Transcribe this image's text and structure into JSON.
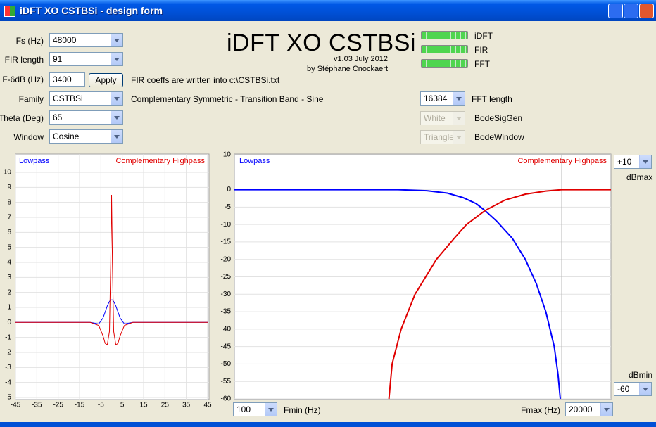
{
  "window": {
    "title": "iDFT XO CSTBSi - design form"
  },
  "form": {
    "fs_label": "Fs (Hz)",
    "fs_value": "48000",
    "fir_length_label": "FIR length",
    "fir_length_value": "91",
    "f6db_label": "F-6dB (Hz)",
    "f6db_value": "3400",
    "apply_button": "Apply",
    "coeffs_note": "FIR coeffs are written into c:\\CSTBSi.txt",
    "family_label": "Family",
    "family_value": "CSTBSi",
    "family_description": "Complementary Symmetric - Transition Band - Sine",
    "theta_label": "Theta (Deg)",
    "theta_value": "65",
    "window_label": "Window",
    "window_value": "Cosine"
  },
  "header": {
    "title": "iDFT XO CSTBSi",
    "version": "v1.03 July 2012",
    "author": "by Stéphane Cnockaert"
  },
  "indicators": [
    {
      "label": "iDFT"
    },
    {
      "label": "FIR"
    },
    {
      "label": "FFT"
    }
  ],
  "fft": {
    "fft_length_value": "16384",
    "fft_length_label": "FFT length",
    "bode_sig_gen_value": "White",
    "bode_sig_gen_label": "BodeSigGen",
    "bode_window_value": "Triangle",
    "bode_window_label": "BodeWindow"
  },
  "bode_controls": {
    "dbmax_value": "+10",
    "dbmax_label": "dBmax",
    "dbmin_label": "dBmin",
    "dbmin_value": "-60",
    "fmin_value": "100",
    "fmin_label": "Fmin (Hz)",
    "fmax_label": "Fmax (Hz)",
    "fmax_value": "20000"
  },
  "chart_data": [
    {
      "type": "line",
      "x": [
        -45,
        -10,
        -6,
        -4,
        -3,
        -2,
        -1,
        -0.4,
        0,
        0.4,
        1,
        2,
        3,
        4,
        6,
        10,
        45
      ],
      "series": [
        {
          "name": "Lowpass",
          "color": "#0000ff",
          "values": [
            0,
            0,
            -0.1,
            0.3,
            0.7,
            1.1,
            1.4,
            1.5,
            1.5,
            1.5,
            1.4,
            1.1,
            0.7,
            0.3,
            -0.1,
            0,
            0
          ]
        },
        {
          "name": "Complementary Highpass",
          "color": "#e00000",
          "values": [
            0,
            0,
            -0.2,
            -0.9,
            -1.4,
            -1.5,
            -0.6,
            4,
            8.5,
            4,
            -0.6,
            -1.5,
            -1.4,
            -0.9,
            -0.2,
            0,
            0
          ]
        }
      ],
      "xlim": [
        -45,
        45
      ],
      "ylim": [
        -5,
        10
      ],
      "xticks": [
        -45,
        -35,
        -25,
        -15,
        -5,
        5,
        15,
        25,
        35,
        45
      ],
      "yticks": [
        -5,
        -4,
        -3,
        -2,
        -1,
        0,
        1,
        2,
        3,
        4,
        5,
        6,
        7,
        8,
        9,
        10
      ],
      "grid": true
    },
    {
      "type": "line",
      "xlog": true,
      "series": [
        {
          "name": "Lowpass",
          "color": "#0000ff",
          "x": [
            100,
            1000,
            1500,
            2000,
            2500,
            3000,
            3400,
            4000,
            5000,
            6000,
            7000,
            8000,
            9000,
            9500,
            9800
          ],
          "values": [
            0,
            0,
            -0.3,
            -1,
            -2.3,
            -4,
            -6,
            -9,
            -14,
            -20,
            -27,
            -35,
            -45,
            -53,
            -60
          ]
        },
        {
          "name": "Complementary Highpass",
          "color": "#e00000",
          "x": [
            880,
            920,
            1045,
            1270,
            1715,
            2200,
            2620,
            3400,
            4500,
            6000,
            8000,
            10000,
            20000
          ],
          "values": [
            -60,
            -50,
            -40,
            -30,
            -20,
            -14,
            -10,
            -6,
            -3,
            -1.3,
            -0.4,
            0,
            0
          ]
        }
      ],
      "xlim": [
        100,
        20000
      ],
      "ylim": [
        -60,
        10
      ],
      "xgrid": [
        1000,
        10000
      ],
      "yticks": [
        10,
        0,
        -5,
        -10,
        -15,
        -20,
        -25,
        -30,
        -35,
        -40,
        -45,
        -50,
        -55,
        -60
      ],
      "grid": true
    }
  ]
}
